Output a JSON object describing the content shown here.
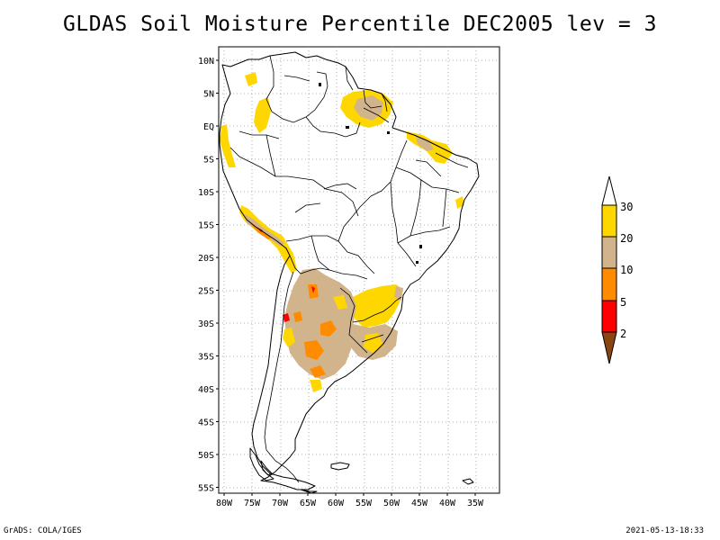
{
  "title": "GLDAS Soil Moisture Percentile DEC2005 lev = 3",
  "footer": {
    "left": "GrADS: COLA/IGES",
    "right": "2021-05-13-18:33"
  },
  "map": {
    "lon_range": [
      -81,
      -30
    ],
    "lat_range": [
      -56,
      11
    ],
    "lon_ticks": [
      "80W",
      "75W",
      "70W",
      "65W",
      "60W",
      "55W",
      "50W",
      "45W",
      "40W",
      "35W"
    ],
    "lat_ticks": [
      "10N",
      "5N",
      "EQ",
      "5S",
      "10S",
      "15S",
      "20S",
      "25S",
      "30S",
      "35S",
      "40S",
      "45S",
      "50S",
      "55S"
    ],
    "grid": true
  },
  "colorbar": {
    "labels": [
      "30",
      "20",
      "10",
      "5",
      "2"
    ],
    "colors": {
      "above": "#ffffff",
      "c20_30": "#ffd700",
      "c10_20": "#d2b48c",
      "c5_10": "#ff8c00",
      "c2_5": "#ff0000",
      "below": "#8b4513"
    }
  }
}
